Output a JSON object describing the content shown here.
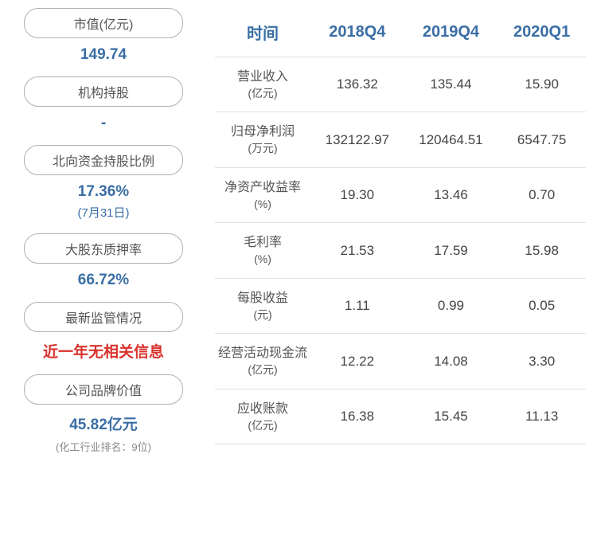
{
  "left_stats": [
    {
      "label": "市值(亿元)",
      "value": "149.74",
      "value_color": "#3a6ea5"
    },
    {
      "label": "机构持股",
      "value": "-",
      "value_color": "#3a6ea5"
    },
    {
      "label": "北向资金持股比例",
      "value": "17.36%",
      "sub": "(7月31日)",
      "value_color": "#3a6ea5"
    },
    {
      "label": "大股东质押率",
      "value": "66.72%",
      "value_color": "#3a6ea5"
    },
    {
      "label": "最新监管情况",
      "value": "近一年无相关信息",
      "value_color": "#d9322d"
    },
    {
      "label": "公司品牌价值",
      "value": "45.82亿元",
      "note": "(化工行业排名：9位)",
      "value_color": "#3a6ea5"
    }
  ],
  "table": {
    "columns": [
      "时间",
      "2018Q4",
      "2019Q4",
      "2020Q1"
    ],
    "header_color": "#3a6ea5",
    "header_fontsize": 20,
    "cell_fontsize": 17,
    "border_color": "#e0e0e0",
    "rows": [
      {
        "metric": "营业收入",
        "unit": "(亿元)",
        "values": [
          "136.32",
          "135.44",
          "15.90"
        ]
      },
      {
        "metric": "归母净利润",
        "unit": "(万元)",
        "values": [
          "132122.97",
          "120464.51",
          "6547.75"
        ]
      },
      {
        "metric": "净资产收益率",
        "unit": "(%)",
        "values": [
          "19.30",
          "13.46",
          "0.70"
        ]
      },
      {
        "metric": "毛利率",
        "unit": "(%)",
        "values": [
          "21.53",
          "17.59",
          "15.98"
        ]
      },
      {
        "metric": "每股收益",
        "unit": "(元)",
        "values": [
          "1.11",
          "0.99",
          "0.05"
        ]
      },
      {
        "metric": "经营活动现金流",
        "unit": "(亿元)",
        "values": [
          "12.22",
          "14.08",
          "3.30"
        ]
      },
      {
        "metric": "应收账款",
        "unit": "(亿元)",
        "values": [
          "16.38",
          "15.45",
          "11.13"
        ]
      }
    ]
  }
}
